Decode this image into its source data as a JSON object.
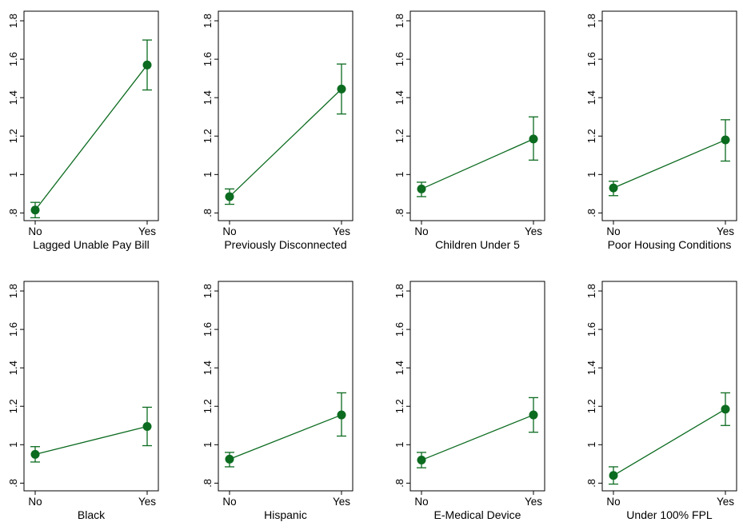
{
  "colors": {
    "marker": "#0b6b1f",
    "frame": "#000000",
    "background": "#ffffff"
  },
  "chart_data": [
    {
      "type": "scatter",
      "xlabel": "Lagged Unable Pay Bill",
      "categories": [
        "No",
        "Yes"
      ],
      "values": [
        0.815,
        1.57
      ],
      "ci_low": [
        0.775,
        1.44
      ],
      "ci_high": [
        0.855,
        1.7
      ],
      "ylim": [
        0.76,
        1.85
      ],
      "yticks": [
        0.8,
        1.0,
        1.2,
        1.4,
        1.6,
        1.8
      ],
      "ytick_labels": [
        ".8",
        "1",
        "1.2",
        "1.4",
        "1.6",
        "1.8"
      ]
    },
    {
      "type": "scatter",
      "xlabel": "Previously Disconnected",
      "categories": [
        "No",
        "Yes"
      ],
      "values": [
        0.885,
        1.445
      ],
      "ci_low": [
        0.845,
        1.315
      ],
      "ci_high": [
        0.925,
        1.575
      ],
      "ylim": [
        0.76,
        1.85
      ],
      "yticks": [
        0.8,
        1.0,
        1.2,
        1.4,
        1.6,
        1.8
      ],
      "ytick_labels": [
        ".8",
        "1",
        "1.2",
        "1.4",
        "1.6",
        "1.8"
      ]
    },
    {
      "type": "scatter",
      "xlabel": "Children Under 5",
      "categories": [
        "No",
        "Yes"
      ],
      "values": [
        0.925,
        1.185
      ],
      "ci_low": [
        0.885,
        1.075
      ],
      "ci_high": [
        0.96,
        1.3
      ],
      "ylim": [
        0.76,
        1.85
      ],
      "yticks": [
        0.8,
        1.0,
        1.2,
        1.4,
        1.6,
        1.8
      ],
      "ytick_labels": [
        ".8",
        "1",
        "1.2",
        "1.4",
        "1.6",
        "1.8"
      ]
    },
    {
      "type": "scatter",
      "xlabel": "Poor Housing Conditions",
      "categories": [
        "No",
        "Yes"
      ],
      "values": [
        0.93,
        1.18
      ],
      "ci_low": [
        0.89,
        1.07
      ],
      "ci_high": [
        0.965,
        1.285
      ],
      "ylim": [
        0.76,
        1.85
      ],
      "yticks": [
        0.8,
        1.0,
        1.2,
        1.4,
        1.6,
        1.8
      ],
      "ytick_labels": [
        ".8",
        "1",
        "1.2",
        "1.4",
        "1.6",
        "1.8"
      ]
    },
    {
      "type": "scatter",
      "xlabel": "Black",
      "categories": [
        "No",
        "Yes"
      ],
      "values": [
        0.95,
        1.095
      ],
      "ci_low": [
        0.91,
        0.995
      ],
      "ci_high": [
        0.99,
        1.195
      ],
      "ylim": [
        0.76,
        1.85
      ],
      "yticks": [
        0.8,
        1.0,
        1.2,
        1.4,
        1.6,
        1.8
      ],
      "ytick_labels": [
        ".8",
        "1",
        "1.2",
        "1.4",
        "1.6",
        "1.8"
      ]
    },
    {
      "type": "scatter",
      "xlabel": "Hispanic",
      "categories": [
        "No",
        "Yes"
      ],
      "values": [
        0.925,
        1.155
      ],
      "ci_low": [
        0.885,
        1.045
      ],
      "ci_high": [
        0.96,
        1.27
      ],
      "ylim": [
        0.76,
        1.85
      ],
      "yticks": [
        0.8,
        1.0,
        1.2,
        1.4,
        1.6,
        1.8
      ],
      "ytick_labels": [
        ".8",
        "1",
        "1.2",
        "1.4",
        "1.6",
        "1.8"
      ]
    },
    {
      "type": "scatter",
      "xlabel": "E-Medical Device",
      "categories": [
        "No",
        "Yes"
      ],
      "values": [
        0.92,
        1.155
      ],
      "ci_low": [
        0.88,
        1.065
      ],
      "ci_high": [
        0.96,
        1.245
      ],
      "ylim": [
        0.76,
        1.85
      ],
      "yticks": [
        0.8,
        1.0,
        1.2,
        1.4,
        1.6,
        1.8
      ],
      "ytick_labels": [
        ".8",
        "1",
        "1.2",
        "1.4",
        "1.6",
        "1.8"
      ]
    },
    {
      "type": "scatter",
      "xlabel": "Under 100% FPL",
      "categories": [
        "No",
        "Yes"
      ],
      "values": [
        0.84,
        1.185
      ],
      "ci_low": [
        0.795,
        1.1
      ],
      "ci_high": [
        0.885,
        1.27
      ],
      "ylim": [
        0.76,
        1.85
      ],
      "yticks": [
        0.8,
        1.0,
        1.2,
        1.4,
        1.6,
        1.8
      ],
      "ytick_labels": [
        ".8",
        "1",
        "1.2",
        "1.4",
        "1.6",
        "1.8"
      ]
    }
  ]
}
